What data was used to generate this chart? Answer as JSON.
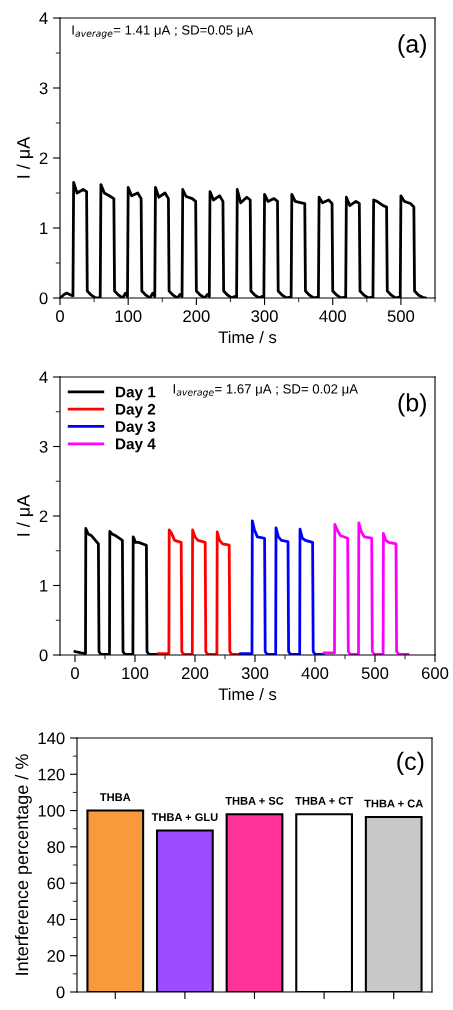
{
  "chart_data": [
    {
      "type": "line",
      "xlabel": "Time / s",
      "ylabel": "I / μA",
      "xlim": [
        0,
        550
      ],
      "ylim": [
        0,
        4
      ],
      "xticks": [
        0,
        100,
        200,
        300,
        400,
        500
      ],
      "yticks": [
        0,
        1,
        2,
        3,
        4
      ],
      "grid": false,
      "legend": false,
      "annotations": [
        "I$_{average}$= 1.41 μA ; SD=0.05 μA",
        "(a)"
      ],
      "series": [
        {
          "color": "#000000",
          "x": [
            0,
            6,
            10,
            14,
            19,
            20,
            25,
            34,
            39,
            40,
            46,
            52,
            56,
            59,
            60,
            65,
            74,
            79,
            80,
            86,
            92,
            96,
            99,
            100,
            105,
            114,
            119,
            120,
            126,
            132,
            136,
            139,
            140,
            145,
            154,
            159,
            160,
            166,
            172,
            176,
            179,
            180,
            185,
            194,
            199,
            200,
            206,
            212,
            216,
            219,
            220,
            225,
            234,
            239,
            240,
            246,
            252,
            256,
            259,
            260,
            265,
            274,
            279,
            280,
            286,
            292,
            296,
            299,
            300,
            305,
            314,
            319,
            320,
            326,
            332,
            336,
            339,
            340,
            345,
            354,
            359,
            360,
            366,
            372,
            376,
            379,
            380,
            385,
            394,
            399,
            400,
            406,
            412,
            416,
            419,
            420,
            425,
            434,
            439,
            440,
            446,
            452,
            456,
            459,
            460,
            465,
            474,
            479,
            480,
            486,
            492,
            496,
            499,
            500,
            505,
            514,
            519,
            520,
            526,
            532,
            536
          ],
          "values": [
            0,
            0.05,
            0.07,
            0.05,
            0.03,
            1.65,
            1.5,
            1.55,
            1.52,
            0.1,
            0.04,
            0,
            0,
            0.01,
            1.62,
            1.5,
            1.45,
            1.42,
            0.1,
            0.04,
            0,
            0.07,
            0.02,
            1.58,
            1.46,
            1.5,
            1.42,
            0.1,
            0.04,
            0,
            0.07,
            0.02,
            1.58,
            1.44,
            1.5,
            1.42,
            0.1,
            0.04,
            0,
            0.05,
            0.02,
            1.55,
            1.45,
            1.42,
            1.38,
            0.1,
            0.04,
            0,
            0.05,
            0.02,
            1.52,
            1.4,
            1.46,
            1.38,
            0.1,
            0.04,
            0,
            0.02,
            0.01,
            1.55,
            1.36,
            1.44,
            1.4,
            0.1,
            0.04,
            0,
            0.02,
            0.01,
            1.48,
            1.38,
            1.42,
            1.38,
            0.1,
            0.04,
            0,
            0.01,
            0.01,
            1.48,
            1.38,
            1.36,
            1.35,
            0.1,
            0.04,
            0,
            0.01,
            0.01,
            1.44,
            1.36,
            1.4,
            1.35,
            0.1,
            0.04,
            0,
            0.01,
            0.01,
            1.44,
            1.32,
            1.38,
            1.35,
            0.1,
            0.04,
            0,
            0.01,
            0.01,
            1.4,
            1.38,
            1.32,
            1.3,
            0.1,
            0.04,
            0,
            0.01,
            0.01,
            1.46,
            1.38,
            1.35,
            1.3,
            0.1,
            0.04,
            0.01,
            0
          ]
        }
      ]
    },
    {
      "type": "line",
      "xlabel": "Time / s",
      "ylabel": "I / μA",
      "xlim": [
        -25,
        600
      ],
      "ylim": [
        0,
        4
      ],
      "xticks": [
        0,
        100,
        200,
        300,
        400,
        500,
        600
      ],
      "yticks": [
        0,
        1,
        2,
        3,
        4
      ],
      "grid": false,
      "legend": "top left",
      "annotations": [
        "I$_{average}$= 1.67 μA ; SD= 0.02 μA",
        "(b)"
      ],
      "series": [
        {
          "name": "Day 1",
          "color": "#000000",
          "x": [
            0,
            10,
            17.5,
            18,
            22,
            27,
            39,
            40,
            43,
            57.5,
            58,
            62,
            67,
            79,
            80,
            83,
            96.5,
            97,
            101,
            106,
            119,
            120,
            123,
            136
          ],
          "values": [
            0.05,
            0.03,
            0.02,
            1.82,
            1.74,
            1.72,
            1.6,
            0.05,
            0.01,
            0.01,
            1.78,
            1.74,
            1.72,
            1.65,
            0.05,
            0.01,
            0.01,
            1.7,
            1.62,
            1.62,
            1.58,
            0.05,
            0.01,
            0.01
          ]
        },
        {
          "name": "Day 2",
          "color": "#ff0000",
          "x": [
            139,
            156.5,
            157,
            161,
            166,
            177,
            178,
            181,
            195.5,
            196,
            200,
            205,
            217,
            218,
            221,
            236.5,
            237,
            241,
            246,
            257,
            258,
            261,
            275
          ],
          "values": [
            0.02,
            0.02,
            1.8,
            1.75,
            1.65,
            1.62,
            0.05,
            0.01,
            0.01,
            1.8,
            1.7,
            1.65,
            1.62,
            0.05,
            0.01,
            0.01,
            1.77,
            1.65,
            1.6,
            1.58,
            0.05,
            0.01,
            0.01
          ]
        },
        {
          "name": "Day 3",
          "color": "#0000ff",
          "x": [
            276,
            295,
            295.5,
            299,
            304,
            316,
            317,
            320,
            334.5,
            335,
            339,
            344,
            355,
            356,
            359,
            374.5,
            375,
            379,
            384,
            396,
            397,
            400,
            414
          ],
          "values": [
            0.02,
            0.02,
            1.93,
            1.8,
            1.7,
            1.68,
            0.05,
            0.01,
            0.01,
            1.83,
            1.7,
            1.65,
            1.63,
            0.05,
            0.01,
            0.01,
            1.81,
            1.68,
            1.65,
            1.62,
            0.05,
            0.01,
            0.01
          ]
        },
        {
          "name": "Day 4",
          "color": "#ff00ff",
          "x": [
            415,
            432.5,
            433,
            437,
            442,
            454.5,
            455.5,
            459,
            472.5,
            473,
            477,
            482,
            494.5,
            495.5,
            499,
            513.5,
            514,
            518,
            523,
            535,
            536,
            540,
            555
          ],
          "values": [
            0.03,
            0.03,
            1.88,
            1.8,
            1.72,
            1.68,
            0.05,
            0.01,
            0.01,
            1.9,
            1.78,
            1.7,
            1.68,
            0.05,
            0.01,
            0.01,
            1.75,
            1.65,
            1.62,
            1.6,
            0.05,
            0.01,
            0.01
          ]
        }
      ]
    },
    {
      "type": "bar",
      "ylabel": "Interference percentage / %",
      "ylim": [
        0,
        140
      ],
      "yticks": [
        0,
        20,
        40,
        60,
        80,
        100,
        120,
        140
      ],
      "grid": false,
      "legend": false,
      "annotations": [
        "(c)"
      ],
      "categories": [
        "THBA",
        "THBA + GLU",
        "THBA + SC",
        "THBA + CT",
        "THBA + CA"
      ],
      "values": [
        100,
        89,
        98,
        98,
        96.5
      ],
      "colors": [
        "#f89a3c",
        "#9b4dff",
        "#ff3399",
        "#ffffff",
        "#c8c8c8"
      ]
    }
  ]
}
